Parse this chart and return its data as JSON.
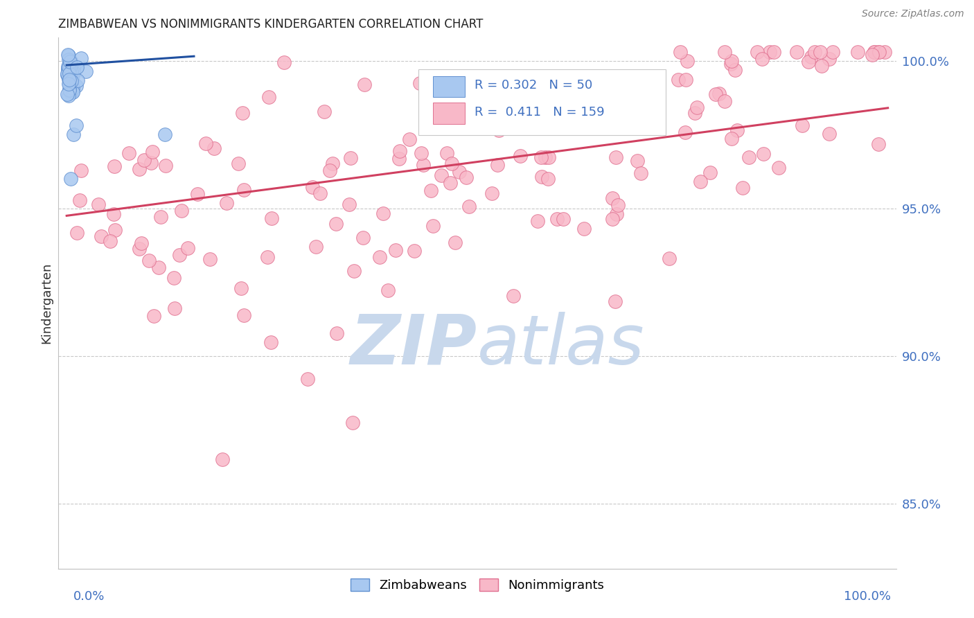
{
  "title": "ZIMBABWEAN VS NONIMMIGRANTS KINDERGARTEN CORRELATION CHART",
  "source": "Source: ZipAtlas.com",
  "ylabel": "Kindergarten",
  "legend_r_blue": "0.302",
  "legend_n_blue": "50",
  "legend_r_pink": "0.411",
  "legend_n_pink": "159",
  "blue_color": "#a8c8f0",
  "blue_edge_color": "#6090d0",
  "pink_color": "#f8b8c8",
  "pink_edge_color": "#e07090",
  "trend_blue_color": "#2050a0",
  "trend_pink_color": "#d04060",
  "watermark_zip_color": "#c8d8ec",
  "watermark_atlas_color": "#c8d8ec",
  "title_color": "#202020",
  "axis_label_color": "#4070c0",
  "source_color": "#808080",
  "grid_color": "#c8c8c8",
  "ylim_min": 0.828,
  "ylim_max": 1.008,
  "xlim_min": -0.01,
  "xlim_max": 1.01,
  "yticks": [
    1.0,
    0.95,
    0.9,
    0.85
  ],
  "ytick_labels": [
    "100.0%",
    "95.0%",
    "90.0%",
    "85.0%"
  ],
  "blue_trend_x": [
    0.0,
    0.155
  ],
  "blue_trend_y": [
    0.9985,
    1.0015
  ],
  "pink_trend_x": [
    0.0,
    1.0
  ],
  "pink_trend_y": [
    0.9475,
    0.984
  ]
}
